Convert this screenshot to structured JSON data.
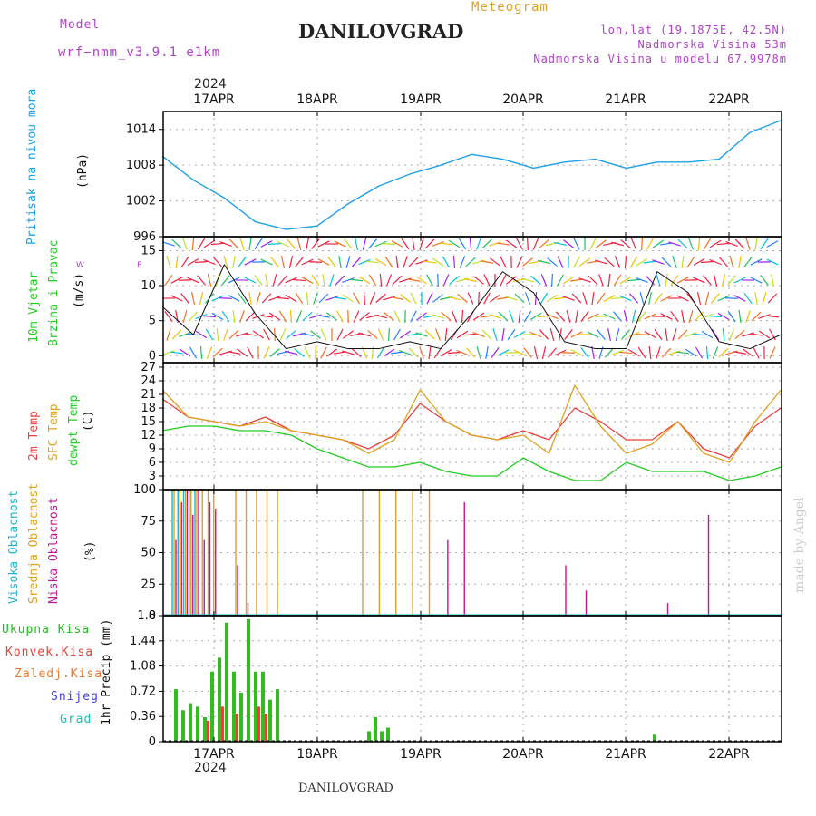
{
  "header": {
    "model_label": "Model",
    "model_name": "wrf−nmm_v3.9.1 e1km",
    "title": "DANILOVGRAD",
    "meteogram": "Meteogram",
    "lonlat": "lon,lat (19.1875E, 42.5N)",
    "elev1": "Nadmorska Visina 53m",
    "elev2": "Nadmorska Visina u modelu 67.9978m",
    "year": "2024",
    "footer": "DANILOVGRAD",
    "watermark": "made by Angel"
  },
  "dates": [
    "17APR",
    "18APR",
    "19APR",
    "20APR",
    "21APR",
    "22APR"
  ],
  "colors": {
    "pressure": "#1ea0e8",
    "t2m": "#e8403a",
    "sfc": "#e0a020",
    "dew": "#22cc22",
    "high": "#20b0d0",
    "mid": "#e0a020",
    "low": "#c01890",
    "total": "#33bb22",
    "conv": "#e8403a"
  },
  "panel_labels": {
    "pressure": [
      "Pritisak na nivou mora",
      "(hPa)"
    ],
    "wind": [
      "10m Vjetar",
      "Brzina i Pravac",
      "(m/s)"
    ],
    "wind_compass": [
      "W",
      "E",
      "N",
      "S"
    ],
    "temp": [
      "2m Temp",
      "SFC Temp",
      "dewpt Temp",
      "(C)"
    ],
    "cloud": [
      "Visoka Oblacnost",
      "Srednja Oblacnost",
      "Niska Oblacnost",
      "(%)"
    ],
    "precip": [
      "Ukupna Kisa",
      "Konvek.Kisa",
      "Zaledj.Kisa",
      "Snijeg",
      "Grad",
      "1hr Precip (mm)"
    ]
  },
  "chart_data": [
    {
      "type": "line",
      "title": "",
      "ylabel": "Pritisak na nivou mora (hPa)",
      "yticks": [
        996,
        1002,
        1008,
        1014
      ],
      "ylim": [
        996,
        1017
      ],
      "x_days": [
        0,
        0.3,
        0.6,
        0.9,
        1.2,
        1.5,
        1.8,
        2.1,
        2.4,
        2.7,
        3.0,
        3.3,
        3.6,
        3.9,
        4.2,
        4.5,
        4.8,
        5.1,
        5.4,
        5.7,
        6.0
      ],
      "series": [
        {
          "name": "Pritisak",
          "values": [
            1009.5,
            1005.5,
            1002.5,
            998.5,
            997.2,
            997.8,
            1001.5,
            1004.5,
            1006.5,
            1008,
            1009.8,
            1009,
            1007.5,
            1008.5,
            1009,
            1007.5,
            1008.5,
            1008.5,
            1009,
            1013.5,
            1015.5
          ]
        }
      ]
    },
    {
      "type": "line",
      "title": "",
      "ylabel": "10m Vjetar Brzina i Pravac (m/s)",
      "yticks": [
        0,
        5,
        10,
        15
      ],
      "ylim": [
        -1,
        17
      ],
      "x_days": [
        0,
        0.3,
        0.6,
        0.9,
        1.2,
        1.5,
        1.8,
        2.1,
        2.4,
        2.7,
        3.0,
        3.3,
        3.6,
        3.9,
        4.2,
        4.5,
        4.8,
        5.1,
        5.4,
        5.7,
        6.0
      ],
      "series": [
        {
          "name": "Brzina",
          "values": [
            7,
            3,
            13,
            6,
            1,
            2,
            1,
            1,
            2,
            1,
            6,
            12,
            9,
            2,
            1,
            1,
            12,
            9,
            2,
            1,
            3
          ]
        }
      ]
    },
    {
      "type": "line",
      "title": "",
      "ylabel": "(C)",
      "yticks": [
        0,
        3,
        6,
        9,
        12,
        15,
        18,
        21,
        24,
        27
      ],
      "ylim": [
        0,
        28
      ],
      "x_days": [
        0,
        0.25,
        0.5,
        0.75,
        1.0,
        1.25,
        1.5,
        1.75,
        2.0,
        2.25,
        2.5,
        2.75,
        3.0,
        3.25,
        3.5,
        3.75,
        4.0,
        4.25,
        4.5,
        4.75,
        5.0,
        5.25,
        5.5,
        5.75,
        6.0
      ],
      "series": [
        {
          "name": "2m Temp",
          "values": [
            20,
            16,
            15,
            14,
            16,
            13,
            12,
            11,
            9,
            12,
            19,
            15,
            12,
            11,
            13,
            11,
            18,
            15,
            11,
            11,
            15,
            9,
            7,
            14,
            18
          ]
        },
        {
          "name": "SFC Temp",
          "values": [
            22,
            16,
            15,
            14,
            15,
            13,
            12,
            11,
            8,
            11,
            22,
            15,
            12,
            11,
            12,
            8,
            23,
            14,
            8,
            10,
            15,
            8,
            6,
            15,
            22
          ]
        },
        {
          "name": "dewpt Temp",
          "values": [
            13,
            14,
            14,
            13,
            13,
            12,
            9,
            7,
            5,
            5,
            6,
            4,
            3,
            3,
            7,
            4,
            2,
            2,
            6,
            4,
            4,
            4,
            2,
            3,
            5
          ]
        }
      ]
    },
    {
      "type": "bar",
      "title": "",
      "ylabel": "(%)",
      "yticks": [
        0,
        25,
        50,
        75,
        100
      ],
      "ylim": [
        0,
        100
      ],
      "series": [
        {
          "name": "Visoka Oblacnost",
          "values": [
            100,
            100,
            100,
            100,
            100,
            0,
            0,
            0,
            0,
            0,
            0,
            0,
            0,
            0,
            0,
            0,
            0,
            0,
            0,
            0,
            0,
            0,
            0,
            0,
            0,
            0,
            0,
            0,
            0,
            0
          ]
        },
        {
          "name": "Srednja Oblacnost",
          "values": [
            100,
            100,
            100,
            100,
            100,
            100,
            100,
            100,
            100,
            100,
            100,
            100,
            100,
            0,
            0,
            0,
            100,
            100,
            100,
            100,
            100,
            0,
            0,
            0,
            0,
            0,
            0,
            0,
            0,
            0
          ]
        },
        {
          "name": "Niska Oblacnost",
          "values": [
            60,
            90,
            100,
            80,
            100,
            60,
            90,
            85,
            40,
            10,
            0,
            0,
            0,
            0,
            0,
            0,
            0,
            0,
            0,
            0,
            0,
            60,
            90,
            80,
            40,
            20,
            0,
            0,
            0,
            10
          ]
        }
      ]
    },
    {
      "type": "bar",
      "title": "",
      "ylabel": "1hr Precip (mm)",
      "yticks": [
        0,
        0.36,
        0.72,
        1.08,
        1.44,
        1.8
      ],
      "ylim": [
        0,
        1.8
      ],
      "series": [
        {
          "name": "Ukupna Kisa",
          "values": [
            0.75,
            0.45,
            0.55,
            0.5,
            0.35,
            1.0,
            1.2,
            1.7,
            1.0,
            0.7,
            1.75,
            1.0,
            1.0,
            0.6,
            0.75,
            0.15,
            0.35,
            0.15,
            0.2,
            0.1
          ]
        },
        {
          "name": "Konvek.Kisa",
          "values": [
            0,
            0,
            0,
            0,
            0.3,
            0,
            0.5,
            0,
            0.4,
            0,
            0,
            0.5,
            0.4,
            0,
            0,
            0,
            0,
            0,
            0,
            0
          ]
        }
      ]
    }
  ]
}
